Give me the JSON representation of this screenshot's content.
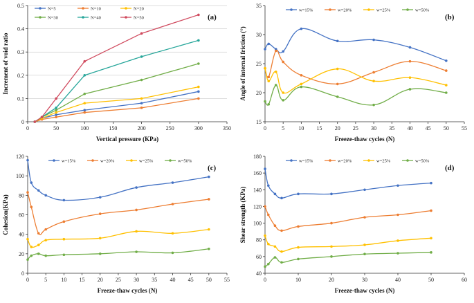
{
  "chart_data": [
    {
      "id": "a",
      "panel_label": "(a)",
      "type": "line",
      "xlabel": "Vertical pressure (KPa)",
      "ylabel": "Increment of void ratio",
      "xlim": [
        0,
        350
      ],
      "ylim": [
        0,
        0.5
      ],
      "xticks": [
        0,
        50,
        100,
        150,
        200,
        250,
        300,
        350
      ],
      "yticks": [
        0,
        0.1,
        0.2,
        0.3,
        0.4,
        0.5
      ],
      "grid": "horizontal",
      "legend_position": "top-left",
      "x": [
        12.5,
        25,
        50,
        100,
        200,
        300
      ],
      "series": [
        {
          "name": "N=5",
          "color": "#4472c4",
          "values": [
            0,
            0.015,
            0.03,
            0.05,
            0.08,
            0.13
          ]
        },
        {
          "name": "N=10",
          "color": "#ed7d31",
          "values": [
            0,
            0.01,
            0.02,
            0.04,
            0.06,
            0.1
          ]
        },
        {
          "name": "N=20",
          "color": "#ffc000",
          "values": [
            0,
            0.015,
            0.04,
            0.08,
            0.1,
            0.15
          ]
        },
        {
          "name": "N=30",
          "color": "#70ad47",
          "values": [
            0,
            0.02,
            0.05,
            0.12,
            0.18,
            0.25
          ]
        },
        {
          "name": "N=40",
          "color": "#26a69a",
          "values": [
            0,
            0.02,
            0.06,
            0.2,
            0.28,
            0.35
          ]
        },
        {
          "name": "N=50",
          "color": "#d04a5e",
          "values": [
            0,
            0.02,
            0.1,
            0.26,
            0.38,
            0.46
          ]
        }
      ]
    },
    {
      "id": "b",
      "panel_label": "(b)",
      "type": "line",
      "xlabel": "Freeze-thaw cycles (N)",
      "ylabel": "Angle of internal friction (°)",
      "xlim": [
        0,
        55
      ],
      "ylim": [
        15,
        35
      ],
      "xticks": [
        0,
        5,
        10,
        15,
        20,
        25,
        30,
        35,
        40,
        45,
        50,
        55
      ],
      "yticks": [
        15,
        20,
        25,
        30,
        35
      ],
      "grid": "none",
      "legend_position": "top",
      "x": [
        0,
        1,
        3,
        5,
        10,
        20,
        30,
        40,
        50
      ],
      "series": [
        {
          "name": "w=15%",
          "color": "#4472c4",
          "values": [
            27.5,
            28.4,
            27.5,
            27.1,
            31.0,
            28.9,
            29.1,
            27.8,
            25.5
          ]
        },
        {
          "name": "w=20%",
          "color": "#ed7d31",
          "values": [
            24.2,
            22.7,
            27.2,
            25.3,
            23.0,
            21.5,
            23.5,
            25.4,
            23.8
          ]
        },
        {
          "name": "w=25%",
          "color": "#ffc000",
          "values": [
            24.2,
            22.0,
            23.6,
            20.0,
            21.5,
            24.1,
            22.0,
            22.6,
            21.3
          ]
        },
        {
          "name": "w=50%",
          "color": "#70ad47",
          "values": [
            18.5,
            18.0,
            21.3,
            18.7,
            21.0,
            19.3,
            17.9,
            20.6,
            20.0
          ]
        }
      ]
    },
    {
      "id": "c",
      "panel_label": "(c)",
      "type": "line",
      "xlabel": "Freeze-thaw cycles (N)",
      "ylabel": "Cohesion(KPa)",
      "xlim": [
        0,
        55
      ],
      "ylim": [
        0,
        120
      ],
      "xticks": [
        0,
        5,
        10,
        15,
        20,
        25,
        30,
        35,
        40,
        45,
        50,
        55
      ],
      "yticks": [
        0,
        20,
        40,
        60,
        80,
        100,
        120
      ],
      "grid": "none",
      "legend_position": "top",
      "x": [
        0,
        1,
        3,
        5,
        10,
        20,
        30,
        40,
        50
      ],
      "series": [
        {
          "name": "w=15%",
          "color": "#4472c4",
          "values": [
            116,
            93,
            85,
            80,
            75,
            78,
            88,
            93,
            99
          ]
        },
        {
          "name": "w=20%",
          "color": "#ed7d31",
          "values": [
            83,
            68,
            41,
            45,
            53,
            61,
            65,
            71,
            76
          ]
        },
        {
          "name": "w=25%",
          "color": "#ffc000",
          "values": [
            35,
            27,
            29,
            34,
            35,
            36,
            43,
            41,
            45
          ]
        },
        {
          "name": "w=50%",
          "color": "#70ad47",
          "values": [
            14,
            18,
            20,
            18,
            19,
            20,
            22,
            21,
            25
          ]
        }
      ]
    },
    {
      "id": "d",
      "panel_label": "(d)",
      "type": "line",
      "xlabel": "Freeze-thaw cycles (N)",
      "ylabel": "Shear strength (KPa)",
      "xlim": [
        0,
        60
      ],
      "ylim": [
        40,
        180
      ],
      "xticks": [
        0,
        10,
        20,
        30,
        40,
        50,
        60
      ],
      "yticks": [
        40,
        60,
        80,
        100,
        120,
        140,
        160,
        180
      ],
      "grid": "none",
      "legend_position": "top",
      "x": [
        0,
        1,
        3,
        5,
        10,
        20,
        30,
        40,
        50
      ],
      "series": [
        {
          "name": "w=15%",
          "color": "#4472c4",
          "values": [
            165,
            145,
            135,
            130,
            135,
            135,
            140,
            145,
            148
          ]
        },
        {
          "name": "w=20%",
          "color": "#ed7d31",
          "values": [
            120,
            110,
            97,
            91,
            96,
            100,
            107,
            110,
            115
          ]
        },
        {
          "name": "w=25%",
          "color": "#ffc000",
          "values": [
            85,
            75,
            72,
            66,
            71,
            72,
            74,
            79,
            82
          ]
        },
        {
          "name": "w=50%",
          "color": "#70ad47",
          "values": [
            48,
            51,
            59,
            53,
            57,
            60,
            63,
            64,
            65
          ]
        }
      ]
    }
  ]
}
